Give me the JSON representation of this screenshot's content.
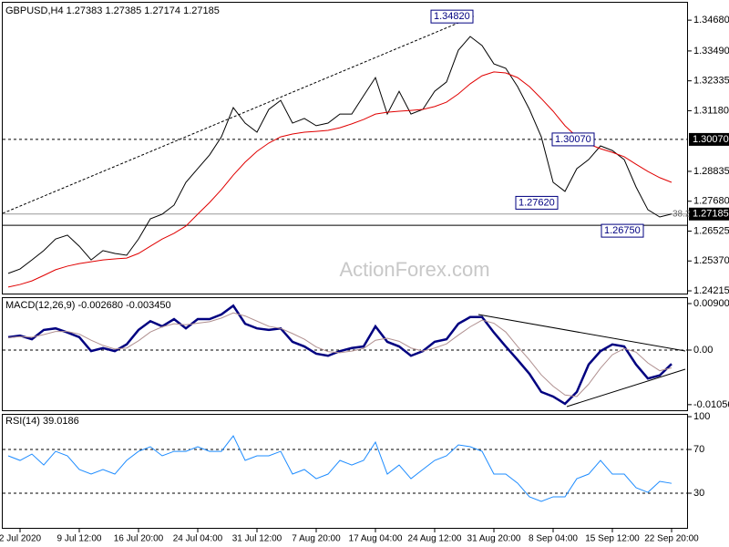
{
  "chart_data": [
    {
      "type": "line",
      "title": "GBPUSD,H4  1.27383 1.27385 1.27174 1.27185",
      "watermark": "ActionForex.com",
      "categories": [
        null,
        "2 Jul 2020",
        null,
        null,
        null,
        null,
        "9 Jul 12:00",
        null,
        null,
        null,
        null,
        "16 Jul 20:00",
        null,
        null,
        null,
        null,
        "24 Jul 04:00",
        null,
        null,
        null,
        null,
        "31 Jul 12:00",
        null,
        null,
        null,
        null,
        "7 Aug 20:00",
        null,
        null,
        null,
        null,
        "17 Aug 04:00",
        null,
        null,
        null,
        null,
        "24 Aug 12:00",
        null,
        null,
        null,
        null,
        "31 Aug 20:00",
        null,
        null,
        null,
        null,
        "8 Sep 04:00",
        null,
        null,
        null,
        null,
        "15 Sep 12:00",
        null,
        null,
        null,
        null,
        "22 Sep 20:00"
      ],
      "series": [
        {
          "color": "#000000",
          "values": [
            1.2489,
            1.2506,
            1.2541,
            1.2577,
            1.2622,
            1.2637,
            1.2594,
            1.2541,
            1.2577,
            1.2566,
            1.2559,
            1.2622,
            1.27,
            1.2718,
            1.2753,
            1.2841,
            1.2894,
            1.2947,
            1.3017,
            1.313,
            1.307,
            1.3035,
            1.3123,
            1.3158,
            1.307,
            1.3088,
            1.306,
            1.307,
            1.3105,
            1.3105,
            1.3176,
            1.3246,
            1.3105,
            1.3193,
            1.3105,
            1.3123,
            1.3193,
            1.3229,
            1.3352,
            1.3405,
            1.337,
            1.3299,
            1.3282,
            1.3211,
            1.3123,
            1.3017,
            1.2841,
            1.2806,
            1.2894,
            1.2929,
            1.2982,
            1.2964,
            1.2929,
            1.2823,
            1.2735,
            1.2707,
            1.27185
          ]
        },
        {
          "color": "#e00000",
          "values": [
            1.2436,
            1.2446,
            1.246,
            1.2481,
            1.2503,
            1.2517,
            1.2527,
            1.2534,
            1.2541,
            1.2545,
            1.2548,
            1.2566,
            1.2594,
            1.2622,
            1.2644,
            1.2672,
            1.2718,
            1.2763,
            1.2813,
            1.2869,
            1.2919,
            1.2961,
            1.2993,
            1.3017,
            1.3028,
            1.3035,
            1.3038,
            1.3042,
            1.3052,
            1.3067,
            1.3084,
            1.3105,
            1.3112,
            1.3116,
            1.3119,
            1.3123,
            1.3134,
            1.3151,
            1.3183,
            1.3222,
            1.3253,
            1.3268,
            1.3264,
            1.3246,
            1.3211,
            1.3165,
            1.3116,
            1.306,
            1.3017,
            1.2989,
            1.2971,
            1.2957,
            1.294,
            1.2911,
            1.2883,
            1.2859,
            1.2841
          ]
        }
      ],
      "ylim": [
        1.2411,
        1.3546
      ],
      "yticks": [
        {
          "value": 1.3468,
          "label": "1.34680"
        },
        {
          "value": 1.3349,
          "label": "1.33490"
        },
        {
          "value": 1.32335,
          "label": "1.32335"
        },
        {
          "value": 1.3118,
          "label": "1.31180"
        },
        {
          "value": 1.28835,
          "label": "1.28835"
        },
        {
          "value": 1.2768,
          "label": "1.27680"
        },
        {
          "value": 1.26525,
          "label": "1.26525"
        },
        {
          "value": 1.2537,
          "label": "1.25370"
        },
        {
          "value": 1.24215,
          "label": "1.24215"
        }
      ],
      "levels": [
        {
          "value": 1.3007,
          "style": "dashed"
        },
        {
          "value": 1.2675,
          "style": "solid"
        },
        {
          "value": 1.27185,
          "style": "grey"
        }
      ],
      "axis_labels": [
        {
          "value": 1.3007,
          "label": "1.30070"
        },
        {
          "value": 1.27185,
          "label": "1.27185"
        }
      ],
      "annotations": [
        {
          "value": 1.3482,
          "label": "1.34820"
        },
        {
          "value": 1.3007,
          "label": "1.30070"
        },
        {
          "value": 1.2762,
          "label": "1.27620"
        },
        {
          "value": 1.2675,
          "label": "1.26750"
        }
      ],
      "fib_label": "38.2"
    },
    {
      "type": "line",
      "title": "MACD(12,26,9) -0.002680 -0.003450",
      "series": [
        {
          "color": "#000080",
          "values": [
            0.0025,
            0.0028,
            0.0021,
            0.0039,
            0.0042,
            0.0034,
            0.0025,
            -0.0002,
            0.0004,
            -0.0002,
            0.0011,
            0.0039,
            0.0056,
            0.0046,
            0.006,
            0.0042,
            0.006,
            0.006,
            0.0069,
            0.0086,
            0.0051,
            0.0042,
            0.0039,
            0.0042,
            0.0016,
            0.0007,
            -0.0007,
            -0.0011,
            -0.0002,
            0.0004,
            0.0007,
            0.0046,
            0.0016,
            0.0007,
            -0.0011,
            -0.0002,
            0.0016,
            0.0021,
            0.0051,
            0.0064,
            0.0064,
            0.0034,
            0.0007,
            -0.0019,
            -0.0046,
            -0.0081,
            -0.009,
            -0.0104,
            -0.0081,
            -0.0028,
            -0.0002,
            0.0011,
            0.0007,
            -0.0028,
            -0.0055,
            -0.0049,
            -0.00268
          ]
        },
        {
          "color": "#b09090",
          "values": [
            0.0024,
            0.0026,
            0.0025,
            0.003,
            0.0036,
            0.0036,
            0.0031,
            0.0019,
            0.0009,
            0.0002,
            0.0004,
            0.0018,
            0.0035,
            0.0045,
            0.0051,
            0.0049,
            0.0052,
            0.0055,
            0.0062,
            0.0072,
            0.0066,
            0.0056,
            0.0046,
            0.0042,
            0.0032,
            0.0021,
            0.0006,
            -0.0003,
            -0.0005,
            -0.0002,
            0.0003,
            0.0019,
            0.0023,
            0.0017,
            0.0004,
            -0.0002,
            0.0004,
            0.0012,
            0.0029,
            0.0045,
            0.0058,
            0.0052,
            0.0035,
            0.0007,
            -0.0019,
            -0.0048,
            -0.007,
            -0.0087,
            -0.009,
            -0.0066,
            -0.0035,
            -0.0009,
            0.0003,
            -0.0004,
            -0.0025,
            -0.004,
            -0.00345
          ]
        }
      ],
      "ylim": [
        -0.01165,
        0.01006
      ],
      "yticks": [
        0.009003,
        {
          "value": 0,
          "label": "0.00"
        },
        -0.010566
      ],
      "levels": [
        0
      ]
    },
    {
      "type": "line",
      "title": "RSI(14) 39.0186",
      "series": [
        {
          "color": "#1e8cff",
          "values": [
            64.2,
            60,
            65.8,
            55.8,
            68.3,
            64.2,
            51.7,
            47.5,
            51.7,
            47.5,
            60,
            68.3,
            72.5,
            64.2,
            68.3,
            68.3,
            72.5,
            68.3,
            68.3,
            82.5,
            60,
            64.2,
            64.2,
            68.3,
            47.5,
            51.7,
            43.3,
            47.5,
            60,
            55.8,
            60,
            76.7,
            47.5,
            55.8,
            43.3,
            51.7,
            60,
            64.2,
            74.2,
            72.5,
            68.3,
            47.5,
            47.5,
            39.2,
            26.7,
            22.5,
            26.7,
            26.7,
            43.3,
            47.5,
            60,
            47.5,
            47.5,
            35,
            30.8,
            40.8,
            39.0186
          ]
        }
      ],
      "ylim": [
        -2.5,
        101.7
      ],
      "yticks": [
        100,
        70,
        30
      ],
      "levels": [
        70,
        30
      ]
    }
  ]
}
